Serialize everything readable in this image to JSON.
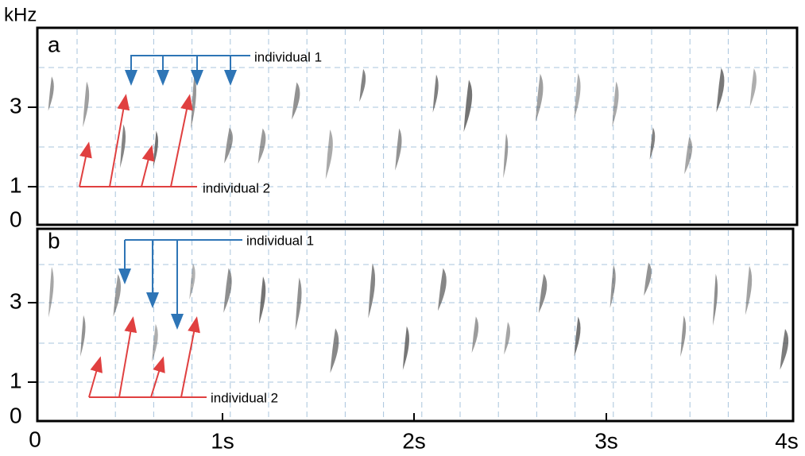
{
  "figure": {
    "y_unit": "kHz",
    "panels": [
      {
        "label": "a",
        "yticks": [
          "3",
          "1",
          "0"
        ],
        "annotations": [
          "individual 1",
          "individual 2"
        ]
      },
      {
        "label": "b",
        "yticks": [
          "3",
          "1",
          "0"
        ],
        "annotations": [
          "individual 1",
          "individual 2"
        ]
      }
    ],
    "xticks": [
      "0",
      "1s",
      "2s",
      "3s",
      "4s"
    ]
  }
}
